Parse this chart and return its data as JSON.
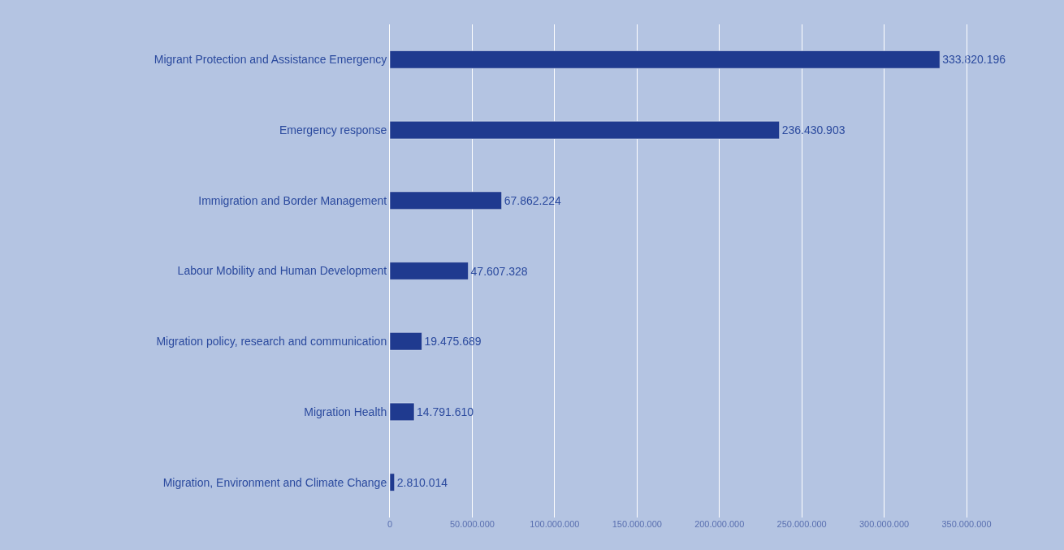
{
  "chart_data": {
    "type": "bar",
    "orientation": "horizontal",
    "categories": [
      "Migrant Protection and Assistance Emergency",
      "Emergency response",
      "Immigration and Border Management",
      "Labour Mobility and Human Development",
      "Migration policy, research and communication",
      "Migration Health",
      "Migration, Environment and Climate Change"
    ],
    "values": [
      333820196,
      236430903,
      67862224,
      47607328,
      19475689,
      14791610,
      2810014
    ],
    "value_labels": [
      "333.820.196",
      "236.430.903",
      "67.862.224",
      "47.607.328",
      "19.475.689",
      "14.791.610",
      "2.810.014"
    ],
    "color": "#1f3a8f",
    "xlim": [
      0,
      350000000
    ],
    "xticks": [
      0,
      {
        "value": 50000000,
        "label": "50.000.000"
      },
      {
        "value": 100000000,
        "label": "100.000.000"
      },
      {
        "value": 150000000,
        "label": "150.000.000"
      },
      {
        "value": 200000000,
        "label": "200.000.000"
      },
      {
        "value": 250000000,
        "label": "250.000.000"
      },
      {
        "value": 300000000,
        "label": "300.000.000"
      },
      {
        "value": 350000000,
        "label": "350.000.000"
      }
    ],
    "grid": "x"
  }
}
